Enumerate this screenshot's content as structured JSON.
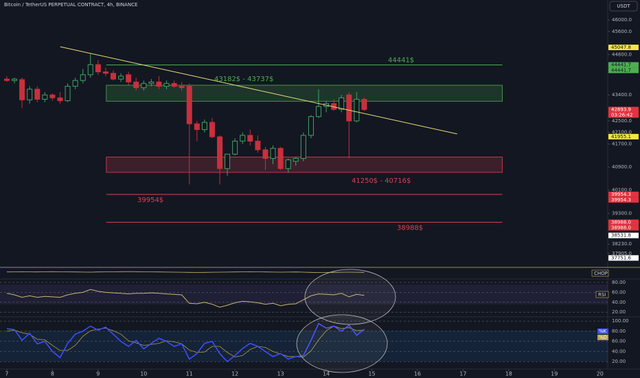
{
  "chart_data": {
    "type": "candlestick",
    "title": "Bitcoin / TetherUS PERPETUAL CONTRACT, 4h, BINANCE",
    "currency": "USDT",
    "up_color": "#3fa564",
    "down_color": "#c8303c",
    "xlim": [
      6.85,
      20.17
    ],
    "xticks": [
      7,
      8,
      9,
      10,
      11,
      12,
      13,
      14,
      15,
      16,
      17,
      18,
      19,
      20
    ],
    "ylim": [
      37450,
      46690
    ],
    "yticks": [
      {
        "value": 46000,
        "label": "46000.0"
      },
      {
        "value": 45600,
        "label": "45600.0"
      },
      {
        "value": 44800,
        "label": "44800.0"
      },
      {
        "value": 43400,
        "label": "43400.0"
      },
      {
        "value": 42500,
        "label": "42500.0"
      },
      {
        "value": 42100,
        "label": "42100.0"
      },
      {
        "value": 41700,
        "label": "41700.0"
      },
      {
        "value": 40900,
        "label": "40900.0"
      },
      {
        "value": 40100,
        "label": "40100.0"
      },
      {
        "value": 39300,
        "label": "39300.0"
      },
      {
        "value": 38230,
        "label": "38230.0"
      },
      {
        "value": 37905,
        "label": "37905.0"
      }
    ],
    "x": [
      7,
      7.167,
      7.333,
      7.5,
      7.667,
      7.833,
      8,
      8.167,
      8.333,
      8.5,
      8.667,
      8.833,
      9,
      9.167,
      9.333,
      9.5,
      9.667,
      9.833,
      10,
      10.167,
      10.333,
      10.5,
      10.667,
      10.833,
      11,
      11.167,
      11.333,
      11.5,
      11.667,
      11.833,
      12,
      12.167,
      12.333,
      12.5,
      12.667,
      12.833,
      13,
      13.167,
      13.333,
      13.5,
      13.667,
      13.833,
      14,
      14.167,
      14.333,
      14.5,
      14.667,
      14.833
    ],
    "open": [
      43950,
      43900,
      43930,
      43230,
      43600,
      43250,
      43400,
      43300,
      43200,
      43700,
      43900,
      44100,
      44450,
      44200,
      44150,
      43950,
      44100,
      43850,
      43650,
      43800,
      43850,
      43700,
      43800,
      43700,
      43700,
      42400,
      42200,
      42450,
      41950,
      40850,
      41350,
      41800,
      42000,
      41800,
      41500,
      41200,
      41550,
      40850,
      41100,
      41200,
      42000,
      42650,
      43000,
      43100,
      42900,
      43400,
      42500,
      43250
    ],
    "high": [
      44050,
      44000,
      44000,
      43700,
      43700,
      43500,
      43450,
      43500,
      43800,
      44000,
      44300,
      44830,
      44600,
      44350,
      44250,
      44150,
      44200,
      44000,
      43900,
      43950,
      44050,
      43900,
      43900,
      43850,
      43800,
      42500,
      42550,
      42600,
      42000,
      41350,
      41900,
      42100,
      42200,
      42000,
      41600,
      41650,
      41600,
      41200,
      41250,
      42100,
      42700,
      43600,
      43200,
      43250,
      43400,
      43500,
      43500,
      43300
    ],
    "low": [
      43850,
      43800,
      42950,
      43100,
      43150,
      43150,
      43200,
      43100,
      43150,
      43600,
      43800,
      44000,
      44100,
      44050,
      43900,
      43850,
      43750,
      43550,
      43550,
      43700,
      43600,
      43600,
      43650,
      43550,
      40300,
      41800,
      42100,
      41900,
      40300,
      40600,
      41300,
      41700,
      41650,
      41400,
      40800,
      41000,
      40800,
      40700,
      40950,
      41100,
      41900,
      42600,
      42800,
      42850,
      42800,
      41200,
      42450,
      42850
    ],
    "close": [
      43900,
      43950,
      43230,
      43600,
      43250,
      43400,
      43300,
      43200,
      43700,
      43900,
      44100,
      44450,
      44200,
      44150,
      43950,
      44050,
      43850,
      43650,
      43800,
      43850,
      43700,
      43800,
      43700,
      43650,
      42400,
      42200,
      42450,
      41950,
      40850,
      41350,
      41800,
      42000,
      41800,
      41500,
      41200,
      41550,
      40850,
      41150,
      41200,
      42000,
      42650,
      43000,
      43100,
      42900,
      43300,
      42500,
      43250,
      42893.9
    ],
    "zones": [
      {
        "top": 43737,
        "bottom": 43182,
        "x0": 9.18,
        "x1": 17.86,
        "color": "#4caf50",
        "label": "43182$ - 43737$"
      },
      {
        "top": 41250,
        "bottom": 40716,
        "x0": 9.18,
        "x1": 17.86,
        "color": "#e04050",
        "label": "41250$ - 40716$"
      }
    ],
    "levels": [
      {
        "value": 44441,
        "x0": 9.18,
        "x1": 17.86,
        "color": "#4caf50",
        "label": "44441$"
      },
      {
        "value": 39954,
        "x0": 9.18,
        "x1": 17.86,
        "color": "#e04050",
        "label": "39954$"
      },
      {
        "value": 38988,
        "x0": 9.18,
        "x1": 17.86,
        "color": "#e04050",
        "label": "38988$"
      }
    ],
    "trendline": {
      "x": [
        8.17,
        16.87
      ],
      "y": [
        45070,
        42049
      ],
      "color": "#e8e07a"
    },
    "price_tags": [
      {
        "value": 45047.8,
        "label": "45047.8",
        "color": "#f5e642",
        "text_color": "#131722"
      },
      {
        "value": 44441.7,
        "label": "44441.7",
        "color": "#4caf50",
        "text_color": "#131722"
      },
      {
        "value": 44441.7,
        "label": "44441.7",
        "color": "#4caf50",
        "text_color": "#131722"
      },
      {
        "value": 42893.9,
        "label": "42893.9",
        "color": "#e5323e",
        "text_color": "#ffffff",
        "countdown": "03:26:42"
      },
      {
        "value": 41955.1,
        "label": "41955.1",
        "color": "#f5e642",
        "text_color": "#131722"
      },
      {
        "value": 39954.3,
        "label": "39954.3",
        "color": "#e5323e",
        "text_color": "#ffffff"
      },
      {
        "value": 39954.3,
        "label": "39954.3",
        "color": "#e5323e",
        "text_color": "#ffffff"
      },
      {
        "value": 38988.0,
        "label": "38988.0",
        "color": "#e5323e",
        "text_color": "#ffffff"
      },
      {
        "value": 38988.0,
        "label": "38988.0",
        "color": "#e5323e",
        "text_color": "#ffffff"
      },
      {
        "value": 38531.8,
        "label": "38531.8",
        "color": "#ffffff",
        "text_color": "#131722"
      },
      {
        "value": 37751.6,
        "label": "37751.6",
        "color": "#ffffff",
        "text_color": "#131722"
      }
    ],
    "chop": {
      "name": "CHOP",
      "color": "#c9b96a",
      "ylim": [
        0,
        100
      ],
      "values": [
        62,
        63,
        64,
        63,
        62,
        64,
        65,
        64,
        63,
        62,
        61,
        60,
        62,
        63,
        64,
        65,
        66,
        65,
        64,
        63,
        62,
        61,
        60,
        59,
        58,
        57,
        58,
        59,
        60,
        61,
        62,
        63,
        64,
        63,
        62,
        61,
        60,
        61,
        62,
        60,
        58,
        56,
        57,
        58,
        59,
        60,
        59,
        58
      ]
    },
    "rsi": {
      "name": "RSI",
      "color": "#c9b96a",
      "ylim": [
        12,
        85.5
      ],
      "yticks": [
        {
          "value": 80,
          "label": "80.00"
        },
        {
          "value": 60,
          "label": "60.00"
        },
        {
          "value": 40,
          "label": "40.00"
        },
        {
          "value": 20,
          "label": "20.00"
        }
      ],
      "values": [
        58,
        55,
        50,
        53,
        50,
        52,
        51,
        50,
        55,
        58,
        60,
        66,
        62,
        60,
        59,
        58,
        57,
        58,
        58,
        59,
        58,
        57,
        56,
        55,
        38,
        37,
        40,
        36,
        30,
        34,
        39,
        42,
        41,
        39,
        36,
        38,
        33,
        36,
        37,
        45,
        53,
        57,
        56,
        55,
        58,
        51,
        56,
        54
      ]
    },
    "stoch": {
      "ylim": [
        8,
        107
      ],
      "yticks": [
        {
          "value": 100,
          "label": "100.00"
        },
        {
          "value": 80,
          "label": "80.00"
        },
        {
          "value": 60,
          "label": "60.00"
        },
        {
          "value": 40,
          "label": "40.00"
        },
        {
          "value": 20,
          "label": "20.00"
        }
      ],
      "series": [
        {
          "name": "%K",
          "color": "#3d4dff",
          "values": [
            85,
            83,
            62,
            76,
            55,
            60,
            40,
            28,
            56,
            74,
            80,
            90,
            82,
            88,
            74,
            60,
            50,
            62,
            45,
            56,
            66,
            60,
            50,
            55,
            25,
            36,
            56,
            60,
            36,
            20,
            32,
            46,
            56,
            50,
            40,
            30,
            36,
            25,
            30,
            32,
            62,
            95,
            86,
            90,
            80,
            92,
            72,
            84
          ]
        },
        {
          "name": "%D",
          "color": "#b8a040",
          "values": [
            80,
            82,
            77,
            74,
            64,
            63,
            52,
            42,
            42,
            52,
            70,
            81,
            84,
            86,
            81,
            74,
            61,
            57,
            52,
            54,
            56,
            61,
            59,
            55,
            43,
            38,
            39,
            50,
            50,
            38,
            29,
            32,
            44,
            50,
            48,
            40,
            35,
            30,
            30,
            29,
            41,
            63,
            81,
            90,
            85,
            87,
            81,
            82
          ]
        }
      ]
    }
  }
}
